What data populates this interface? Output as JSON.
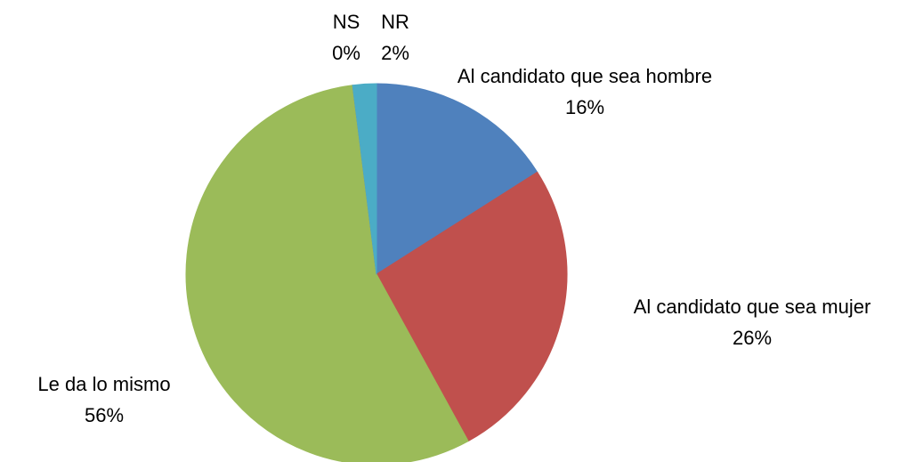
{
  "chart_data": {
    "type": "pie",
    "categories": [
      "Al candidato que sea hombre",
      "Al candidato que sea mujer",
      "Le da lo mismo",
      "NS",
      "NR"
    ],
    "values": [
      16,
      26,
      56,
      0,
      2
    ],
    "value_labels": [
      "16%",
      "26%",
      "56%",
      "0%",
      "2%"
    ],
    "colors": [
      "#4f81bd",
      "#c0504d",
      "#9bbb59",
      "#8064a2",
      "#4bacc6"
    ]
  }
}
